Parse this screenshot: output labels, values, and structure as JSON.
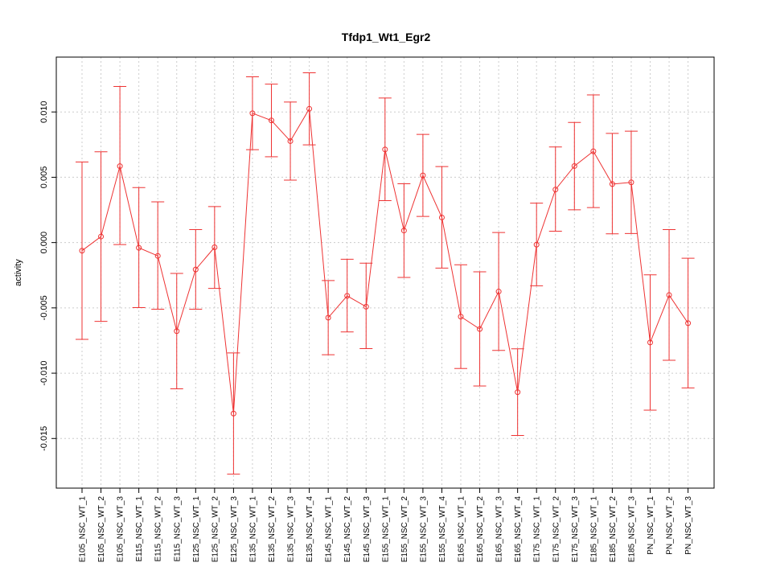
{
  "chart_data": {
    "type": "line",
    "title": "Tfdp1_Wt1_Egr2",
    "ylabel": "activity",
    "xlabel": "",
    "ylim": [
      -0.0188,
      0.0142
    ],
    "yticks": [
      -0.015,
      -0.01,
      -0.005,
      0.0,
      0.005,
      0.01
    ],
    "ytick_labels": [
      "-0.015",
      "-0.010",
      "-0.005",
      "0.000",
      "0.005",
      "0.010"
    ],
    "grid": true,
    "color": "#ee3333",
    "categories": [
      "E105_NSC_WT_1",
      "E105_NSC_WT_2",
      "E105_NSC_WT_3",
      "E115_NSC_WT_1",
      "E115_NSC_WT_2",
      "E115_NSC_WT_3",
      "E125_NSC_WT_1",
      "E125_NSC_WT_2",
      "E125_NSC_WT_3",
      "E135_NSC_WT_1",
      "E135_NSC_WT_2",
      "E135_NSC_WT_3",
      "E135_NSC_WT_4",
      "E145_NSC_WT_1",
      "E145_NSC_WT_2",
      "E145_NSC_WT_3",
      "E155_NSC_WT_1",
      "E155_NSC_WT_2",
      "E155_NSC_WT_3",
      "E155_NSC_WT_4",
      "E165_NSC_WT_1",
      "E165_NSC_WT_2",
      "E165_NSC_WT_3",
      "E165_NSC_WT_4",
      "E175_NSC_WT_1",
      "E175_NSC_WT_2",
      "E175_NSC_WT_3",
      "E185_NSC_WT_1",
      "E185_NSC_WT_2",
      "E185_NSC_WT_3",
      "PN_NSC_WT_1",
      "PN_NSC_WT_2",
      "PN_NSC_WT_3"
    ],
    "values": [
      -0.00062,
      0.00046,
      0.00585,
      -0.0004,
      -0.00102,
      -0.00678,
      -0.00206,
      -0.00036,
      -0.01309,
      0.0099,
      0.00935,
      0.00777,
      0.01024,
      -0.00575,
      -0.00408,
      -0.00491,
      0.00713,
      0.00092,
      0.00514,
      0.00192,
      -0.00567,
      -0.00662,
      -0.00375,
      -0.01145,
      -0.00016,
      0.00406,
      0.00586,
      0.00699,
      0.00448,
      0.00461,
      -0.00765,
      -0.00402,
      -0.00617
    ],
    "upper": [
      0.00617,
      0.00695,
      0.01195,
      0.00421,
      0.00312,
      -0.00236,
      0.00099,
      0.00276,
      -0.00845,
      0.01269,
      0.01213,
      0.01076,
      0.013,
      -0.00291,
      -0.00128,
      -0.00158,
      0.01107,
      0.0045,
      0.00828,
      0.00582,
      -0.0017,
      -0.00224,
      0.00077,
      -0.00813,
      0.00302,
      0.00732,
      0.0092,
      0.01131,
      0.00836,
      0.00853,
      -0.00247,
      0.00099,
      -0.0012
    ],
    "lower": [
      -0.00741,
      -0.00603,
      -0.00015,
      -0.00498,
      -0.0051,
      -0.0112,
      -0.0051,
      -0.00351,
      -0.01773,
      0.00711,
      0.00657,
      0.00478,
      0.00748,
      -0.00859,
      -0.00684,
      -0.00812,
      0.00321,
      -0.00267,
      0.002,
      -0.00195,
      -0.00964,
      -0.01098,
      -0.00826,
      -0.01477,
      -0.00331,
      0.00087,
      0.00251,
      0.00268,
      0.00067,
      0.00069,
      -0.01283,
      -0.00901,
      -0.01113
    ]
  }
}
